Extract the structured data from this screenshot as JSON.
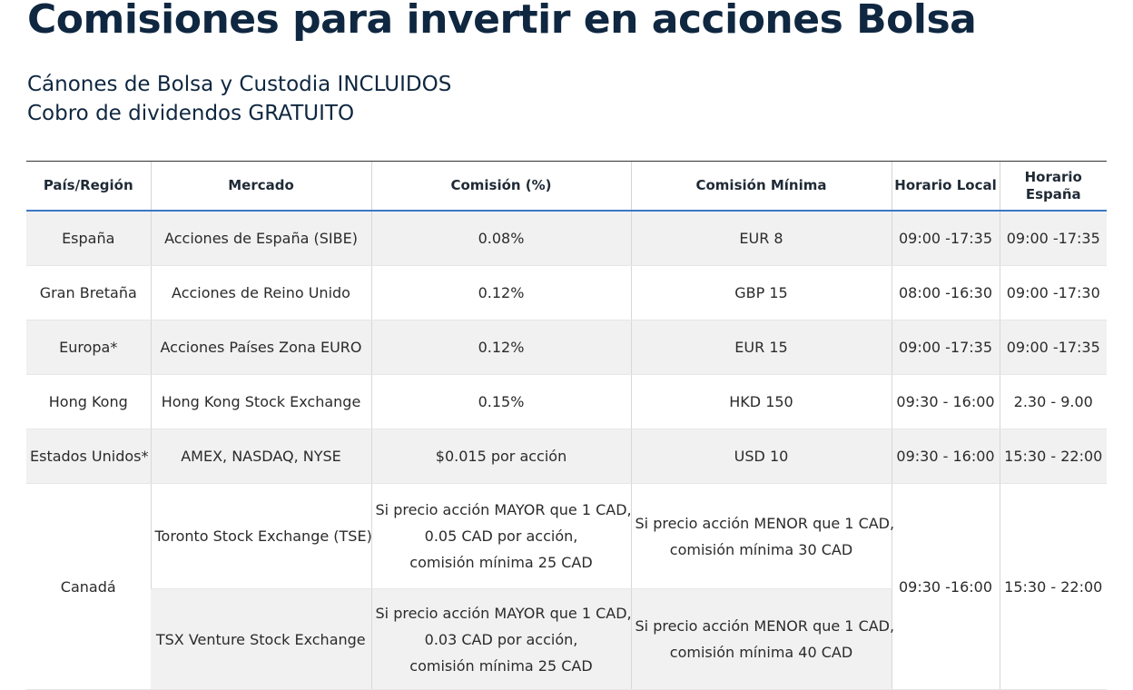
{
  "header": {
    "title": "Comisiones para invertir en acciones Bolsa",
    "subtitle_lines": [
      "Cánones de Bolsa y Custodia INCLUIDOS",
      "Cobro de dividendos GRATUITO"
    ]
  },
  "table": {
    "headers": [
      "País/Región",
      "Mercado",
      "Comisión (%)",
      "Comisión Mínima",
      "Horario Local",
      "Horario España"
    ],
    "rows": [
      [
        "España",
        "Acciones de España (SIBE)",
        "0.08%",
        "EUR 8",
        "09:00 -17:35",
        "09:00 -17:35"
      ],
      [
        "Gran Bretaña",
        "Acciones de Reino Unido",
        "0.12%",
        "GBP 15",
        "08:00 -16:30",
        "09:00 -17:30"
      ],
      [
        "Europa*",
        "Acciones Países Zona EURO",
        "0.12%",
        "EUR 15",
        "09:00 -17:35",
        "09:00 -17:35"
      ],
      [
        "Hong Kong",
        "Hong Kong Stock Exchange",
        "0.15%",
        "HKD 150",
        "09:30 - 16:00",
        "2.30 - 9.00"
      ],
      [
        "Estados Unidos*",
        "AMEX, NASDAQ, NYSE",
        "$0.015 por acción",
        "USD 10",
        "09:30 - 16:00",
        "15:30 - 22:00"
      ]
    ],
    "canada": {
      "country": "Canadá",
      "local_hours": "09:30 -16:00",
      "spain_hours": "15:30 - 22:00",
      "markets": [
        {
          "market": "Toronto Stock Exchange (TSE)",
          "commission": [
            "Si precio acción MAYOR que 1 CAD,",
            "0.05 CAD por acción,",
            "comisión mínima 25 CAD"
          ],
          "minimum": [
            "Si precio acción MENOR que 1 CAD,",
            "comisión mínima 30 CAD"
          ]
        },
        {
          "market": "TSX Venture Stock Exchange",
          "commission": [
            "Si precio acción MAYOR que 1 CAD,",
            "0.03 CAD por acción,",
            "comisión mínima 25 CAD"
          ],
          "minimum": [
            "Si precio acción MENOR que 1 CAD,",
            "comisión mínima 40 CAD"
          ]
        }
      ]
    }
  }
}
